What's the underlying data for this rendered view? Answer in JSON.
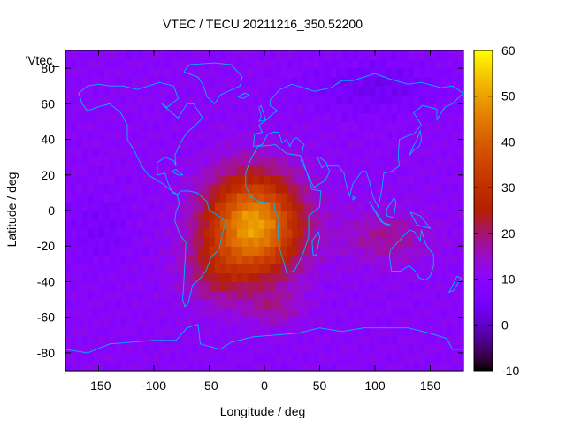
{
  "chart_data": {
    "type": "heatmap",
    "title": "VTEC / TECU 20211216_350.52200",
    "xlabel": "Longitude / deg",
    "ylabel": "Latitude / deg",
    "xlim": [
      -180,
      180
    ],
    "ylim": [
      -90,
      90
    ],
    "xticks": [
      "-150",
      "-100",
      "-50",
      "0",
      "50",
      "100",
      "150"
    ],
    "yticks": [
      "-80",
      "-60",
      "-40",
      "-20",
      "0",
      "20",
      "40",
      "60",
      "80"
    ],
    "colorbar": {
      "min": -10,
      "max": 60,
      "ticks": [
        "-10",
        "0",
        "10",
        "20",
        "30",
        "40",
        "50",
        "60"
      ],
      "colormap": "gnuplot rgbformulae 7,5,15 (black-purple-red-yellow)"
    },
    "legend_entry": "'Vtec_",
    "overlay": "world coastlines",
    "field_description": {
      "background_tecu": 10,
      "peak": {
        "lon": -10,
        "lat": -8,
        "tecu": 50
      },
      "secondary_enhancement": {
        "lon": 110,
        "lat": -15,
        "tecu": 18
      },
      "polar_minimum": {
        "lon": 100,
        "lat": 70,
        "tecu": 4
      }
    }
  }
}
